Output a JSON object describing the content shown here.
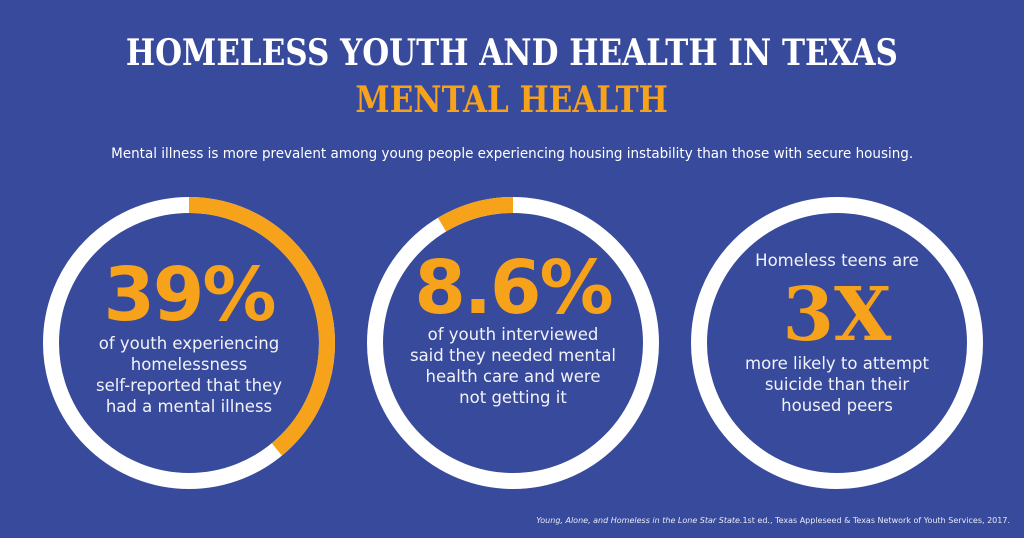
{
  "header": {
    "title": "HOMELESS YOUTH AND HEALTH IN TEXAS",
    "subtitle": "MENTAL HEALTH",
    "intro": "Mental illness is more prevalent among young people experiencing housing instability than those with secure housing."
  },
  "colors": {
    "background": "#384a9b",
    "accent": "#f7a21b",
    "ring_base": "#ffffff",
    "text": "#ffffff"
  },
  "stats": [
    {
      "value": "39%",
      "percent": 39,
      "arc_direction": "clockwise",
      "description": "of youth experiencing\nhomelessness\nself-reported that they\nhad a mental illness"
    },
    {
      "value": "8.6%",
      "percent": 8.6,
      "arc_direction": "counterclockwise",
      "description": "of youth interviewed\nsaid they needed mental\nhealth care and were\nnot getting it"
    },
    {
      "lead": "Homeless teens are",
      "value": "3X",
      "description": "more likely to attempt\nsuicide than their\nhoused peers"
    }
  ],
  "source": {
    "title_italic": "Young, Alone, and Homeless in the Lone Star State.",
    "rest": "1st ed., Texas Appleseed & Texas Network of Youth Services, 2017."
  }
}
